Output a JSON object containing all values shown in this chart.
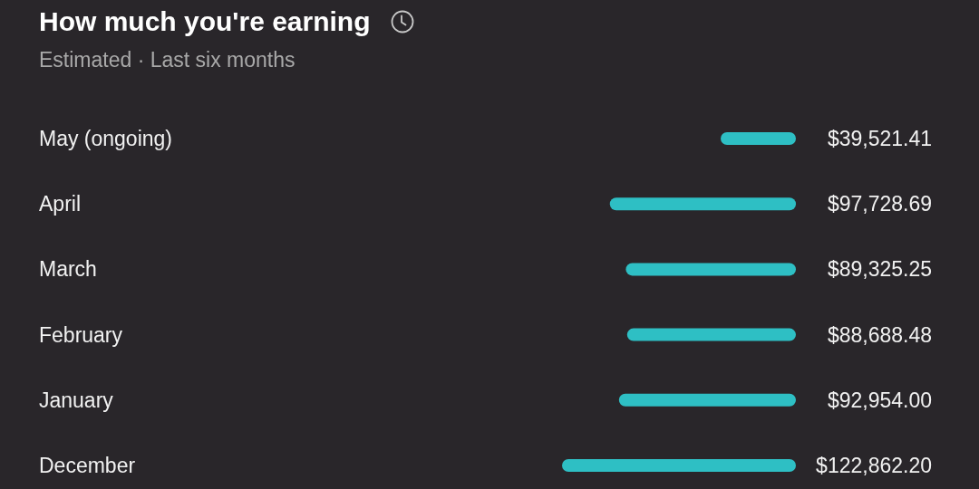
{
  "chart_data": {
    "type": "bar",
    "orientation": "horizontal",
    "title": "How much you're earning",
    "subtitle": "Estimated · Last six months",
    "categories": [
      "May (ongoing)",
      "April",
      "March",
      "February",
      "January",
      "December"
    ],
    "values": [
      39521.41,
      97728.69,
      89325.25,
      88688.48,
      92954.0,
      122862.2
    ],
    "value_labels": [
      "$39,521.41",
      "$97,728.69",
      "$89,325.25",
      "$88,688.48",
      "$92,954.00",
      "$122,862.20"
    ],
    "color": "#2ebfc4"
  }
}
